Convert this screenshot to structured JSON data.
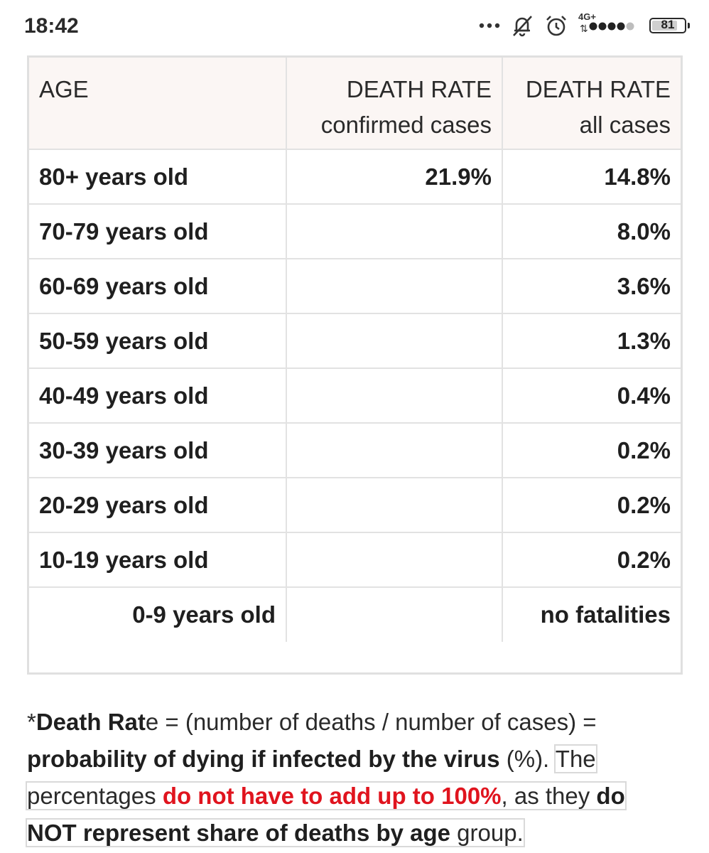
{
  "status_bar": {
    "time": "18:42",
    "icons": [
      "more-dots-icon",
      "bell-off-icon",
      "alarm-icon",
      "signal-icon"
    ],
    "network": "4G+",
    "network_arrows": "⇅",
    "battery_level": "81"
  },
  "table": {
    "headers": {
      "age": "AGE",
      "confirmed_line1": "DEATH RATE",
      "confirmed_line2": "confirmed cases",
      "all_line1": "DEATH RATE",
      "all_line2": "all cases"
    },
    "rows": [
      {
        "age": "80+ years old",
        "confirmed": "21.9%",
        "all": "14.8%"
      },
      {
        "age": "70-79 years old",
        "confirmed": "",
        "all": "8.0%"
      },
      {
        "age": "60-69 years old",
        "confirmed": "",
        "all": "3.6%"
      },
      {
        "age": "50-59 years old",
        "confirmed": "",
        "all": "1.3%"
      },
      {
        "age": "40-49 years old",
        "confirmed": "",
        "all": "0.4%"
      },
      {
        "age": "30-39 years old",
        "confirmed": "",
        "all": "0.2%"
      },
      {
        "age": "20-29 years old",
        "confirmed": "",
        "all": "0.2%"
      },
      {
        "age": "10-19 years old",
        "confirmed": "",
        "all": "0.2%"
      },
      {
        "age": "0-9 years old",
        "confirmed": "",
        "all": "no fatalities"
      }
    ]
  },
  "footnote": {
    "p1": "*",
    "p2": "Death Rat",
    "p3": "e = (number of deaths / number of cases) = ",
    "p4": "probability of dying if infected by the virus",
    "p5": " (%). ",
    "p6": "The",
    "p7": "percentages ",
    "p8": "do not have to add up to 100%",
    "p9": ", as they ",
    "p10": "do",
    "p11": "NOT represent share of deaths by age",
    "p12": " group."
  },
  "colors": {
    "header_bg": "#fbf6f4",
    "border": "#e2e2e2",
    "accent_red": "#e0141e",
    "text": "#1f1f1f"
  }
}
